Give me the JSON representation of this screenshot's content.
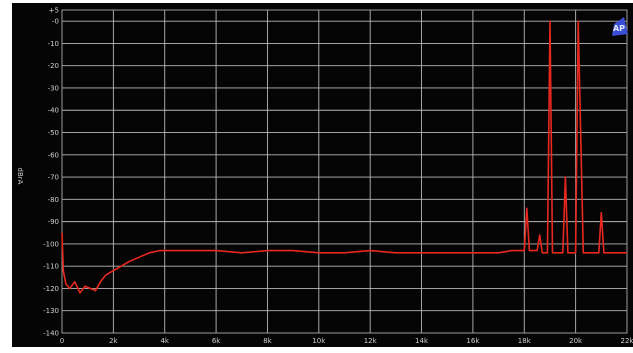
{
  "chart_data": {
    "type": "line",
    "title": "",
    "xlabel": "",
    "ylabel": "dBrA",
    "logo_text": "AP",
    "xlim": [
      0,
      22000
    ],
    "ylim": [
      -140,
      5
    ],
    "grid": true,
    "background_color": "#050505",
    "grid_color": "#b8b8b8",
    "trace_color": "#e8281e",
    "x_ticks": [
      {
        "value": 0,
        "label": "0"
      },
      {
        "value": 2000,
        "label": "2k"
      },
      {
        "value": 4000,
        "label": "4k"
      },
      {
        "value": 6000,
        "label": "6k"
      },
      {
        "value": 8000,
        "label": "8k"
      },
      {
        "value": 10000,
        "label": "10k"
      },
      {
        "value": 12000,
        "label": "12k"
      },
      {
        "value": 14000,
        "label": "14k"
      },
      {
        "value": 16000,
        "label": "16k"
      },
      {
        "value": 18000,
        "label": "18k"
      },
      {
        "value": 20000,
        "label": "20k"
      },
      {
        "value": 22000,
        "label": "22k"
      }
    ],
    "y_ticks": [
      {
        "value": 5,
        "label": "+5"
      },
      {
        "value": 0,
        "label": "-0"
      },
      {
        "value": -10,
        "label": "-10"
      },
      {
        "value": -20,
        "label": "-20"
      },
      {
        "value": -30,
        "label": "-30"
      },
      {
        "value": -40,
        "label": "-40"
      },
      {
        "value": -50,
        "label": "-50"
      },
      {
        "value": -60,
        "label": "-60"
      },
      {
        "value": -70,
        "label": "-70"
      },
      {
        "value": -80,
        "label": "-80"
      },
      {
        "value": -90,
        "label": "-90"
      },
      {
        "value": -100,
        "label": "-100"
      },
      {
        "value": -110,
        "label": "-110"
      },
      {
        "value": -120,
        "label": "-120"
      },
      {
        "value": -130,
        "label": "-130"
      },
      {
        "value": -140,
        "label": "-140"
      }
    ],
    "series": [
      {
        "name": "",
        "x": [
          0,
          50,
          150,
          300,
          500,
          700,
          900,
          1100,
          1300,
          1500,
          1700,
          2000,
          2300,
          2600,
          3000,
          3400,
          3800,
          4200,
          5000,
          6000,
          7000,
          8000,
          9000,
          10000,
          11000,
          12000,
          13000,
          14000,
          15000,
          16000,
          16500,
          17000,
          17500,
          17800,
          18000,
          18100,
          18200,
          18500,
          18600,
          18700,
          18900,
          19000,
          19100,
          19300,
          19500,
          19600,
          19700,
          19900,
          20000,
          20100,
          20300,
          20600,
          20900,
          21000,
          21100,
          21300,
          21600,
          22000
        ],
        "y": [
          -95,
          -112,
          -118,
          -120,
          -117,
          -122,
          -119,
          -120,
          -121,
          -117,
          -114,
          -112,
          -110,
          -108,
          -106,
          -104,
          -103,
          -103,
          -103,
          -103,
          -104,
          -103,
          -103,
          -104,
          -104,
          -103,
          -104,
          -104,
          -104,
          -104,
          -104,
          -104,
          -103,
          -103,
          -103,
          -84,
          -103,
          -103,
          -96,
          -104,
          -104,
          0,
          -104,
          -104,
          -104,
          -70,
          -104,
          -104,
          -104,
          0,
          -104,
          -104,
          -104,
          -86,
          -104,
          -104,
          -104,
          -104
        ]
      }
    ]
  }
}
